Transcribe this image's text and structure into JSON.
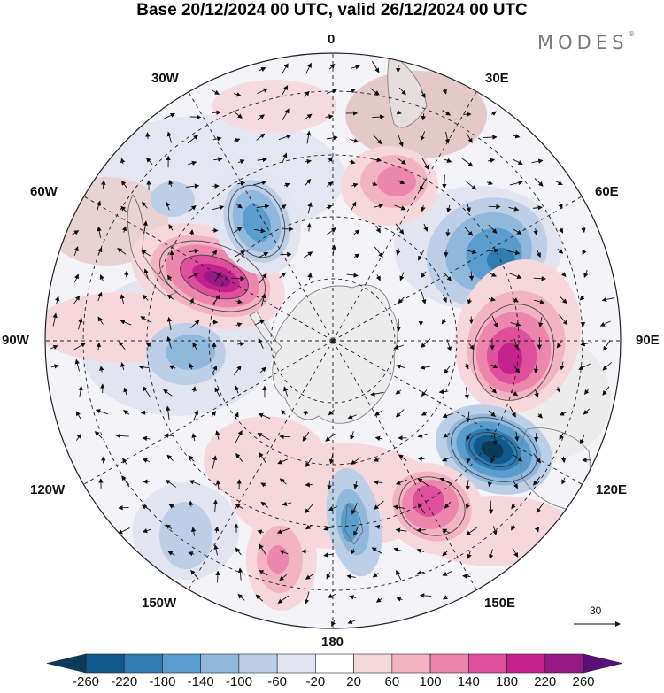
{
  "title": "Base 20/12/2024 00 UTC, valid 26/12/2024 00 UTC",
  "brand": "MODES",
  "brand_mark": "®",
  "map": {
    "projection": "south polar stereographic",
    "longitude_labels": {
      "top": "0",
      "top_right": "30E",
      "upper_right": "60E",
      "right": "90E",
      "lower_right": "120E",
      "bottom_right": "150E",
      "bottom": "180",
      "bottom_left": "150W",
      "lower_left": "120W",
      "left": "90W",
      "upper_left": "60W",
      "top_left": "30W"
    }
  },
  "reference_vector": {
    "label": "30"
  },
  "colorbar": {
    "ticks": [
      "-260",
      "-220",
      "-180",
      "-140",
      "-100",
      "-60",
      "-20",
      "20",
      "60",
      "100",
      "140",
      "180",
      "220",
      "260"
    ],
    "colors": [
      "#0c3a5a",
      "#0f5a8a",
      "#2f7db2",
      "#5a9ccb",
      "#8fb8dc",
      "#bccfe6",
      "#e2e5f0",
      "#ffffff",
      "#f6d8dc",
      "#f2b4c3",
      "#ec86ad",
      "#de4f9c",
      "#c5218d",
      "#961a86",
      "#5a1078"
    ]
  }
}
